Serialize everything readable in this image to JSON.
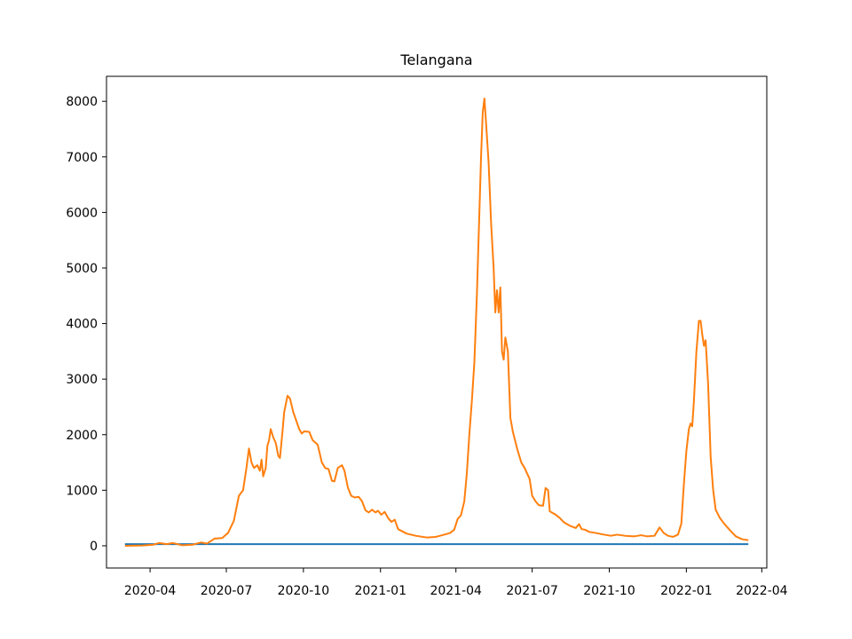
{
  "chart_data": {
    "type": "line",
    "title": "Telangana",
    "xlabel": "",
    "ylabel": "",
    "xlim": [
      "2020-02-09",
      "2022-04-07"
    ],
    "ylim": [
      -400,
      8450
    ],
    "x_ticks": [
      {
        "date": "2020-04-01",
        "label": "2020-04"
      },
      {
        "date": "2020-07-01",
        "label": "2020-07"
      },
      {
        "date": "2020-10-01",
        "label": "2020-10"
      },
      {
        "date": "2021-01-01",
        "label": "2021-01"
      },
      {
        "date": "2021-04-01",
        "label": "2021-04"
      },
      {
        "date": "2021-07-01",
        "label": "2021-07"
      },
      {
        "date": "2021-10-01",
        "label": "2021-10"
      },
      {
        "date": "2022-01-01",
        "label": "2022-01"
      },
      {
        "date": "2022-04-01",
        "label": "2022-04"
      }
    ],
    "y_ticks": [
      0,
      1000,
      2000,
      3000,
      4000,
      5000,
      6000,
      7000,
      8000
    ],
    "grid": false,
    "legend": false,
    "series": [
      {
        "color": "#1f77b4",
        "points": [
          [
            "2020-03-02",
            30
          ],
          [
            "2022-03-16",
            30
          ]
        ]
      },
      {
        "color": "#ff7f0e",
        "points": [
          [
            "2020-03-02",
            0
          ],
          [
            "2020-03-23",
            5
          ],
          [
            "2020-04-05",
            20
          ],
          [
            "2020-04-12",
            50
          ],
          [
            "2020-04-21",
            30
          ],
          [
            "2020-04-28",
            50
          ],
          [
            "2020-05-09",
            10
          ],
          [
            "2020-05-22",
            20
          ],
          [
            "2020-06-01",
            60
          ],
          [
            "2020-06-08",
            40
          ],
          [
            "2020-06-17",
            130
          ],
          [
            "2020-06-26",
            140
          ],
          [
            "2020-07-03",
            230
          ],
          [
            "2020-07-10",
            450
          ],
          [
            "2020-07-16",
            900
          ],
          [
            "2020-07-21",
            1000
          ],
          [
            "2020-07-25",
            1400
          ],
          [
            "2020-07-28",
            1750
          ],
          [
            "2020-07-31",
            1500
          ],
          [
            "2020-08-03",
            1400
          ],
          [
            "2020-08-07",
            1450
          ],
          [
            "2020-08-10",
            1350
          ],
          [
            "2020-08-12",
            1550
          ],
          [
            "2020-08-14",
            1250
          ],
          [
            "2020-08-17",
            1400
          ],
          [
            "2020-08-19",
            1800
          ],
          [
            "2020-08-21",
            1900
          ],
          [
            "2020-08-23",
            2100
          ],
          [
            "2020-08-26",
            1950
          ],
          [
            "2020-08-29",
            1850
          ],
          [
            "2020-09-01",
            1620
          ],
          [
            "2020-09-03",
            1580
          ],
          [
            "2020-09-06",
            2050
          ],
          [
            "2020-09-08",
            2400
          ],
          [
            "2020-09-12",
            2700
          ],
          [
            "2020-09-15",
            2650
          ],
          [
            "2020-09-19",
            2400
          ],
          [
            "2020-09-26",
            2100
          ],
          [
            "2020-09-29",
            2020
          ],
          [
            "2020-10-02",
            2060
          ],
          [
            "2020-10-08",
            2050
          ],
          [
            "2020-10-12",
            1900
          ],
          [
            "2020-10-18",
            1820
          ],
          [
            "2020-10-23",
            1500
          ],
          [
            "2020-10-27",
            1400
          ],
          [
            "2020-10-31",
            1380
          ],
          [
            "2020-11-04",
            1170
          ],
          [
            "2020-11-07",
            1160
          ],
          [
            "2020-11-11",
            1400
          ],
          [
            "2020-11-16",
            1450
          ],
          [
            "2020-11-19",
            1350
          ],
          [
            "2020-11-23",
            1050
          ],
          [
            "2020-11-27",
            900
          ],
          [
            "2020-12-01",
            870
          ],
          [
            "2020-12-06",
            880
          ],
          [
            "2020-12-10",
            800
          ],
          [
            "2020-12-14",
            640
          ],
          [
            "2020-12-18",
            600
          ],
          [
            "2020-12-22",
            650
          ],
          [
            "2020-12-26",
            600
          ],
          [
            "2020-12-29",
            630
          ],
          [
            "2021-01-02",
            560
          ],
          [
            "2021-01-06",
            610
          ],
          [
            "2021-01-10",
            500
          ],
          [
            "2021-01-14",
            430
          ],
          [
            "2021-01-18",
            470
          ],
          [
            "2021-01-22",
            300
          ],
          [
            "2021-02-01",
            220
          ],
          [
            "2021-02-12",
            180
          ],
          [
            "2021-02-25",
            150
          ],
          [
            "2021-03-08",
            160
          ],
          [
            "2021-03-18",
            200
          ],
          [
            "2021-03-25",
            230
          ],
          [
            "2021-03-30",
            290
          ],
          [
            "2021-04-03",
            480
          ],
          [
            "2021-04-07",
            550
          ],
          [
            "2021-04-11",
            800
          ],
          [
            "2021-04-14",
            1300
          ],
          [
            "2021-04-17",
            2000
          ],
          [
            "2021-04-20",
            2600
          ],
          [
            "2021-04-23",
            3300
          ],
          [
            "2021-04-26",
            4500
          ],
          [
            "2021-04-28",
            5500
          ],
          [
            "2021-05-01",
            7000
          ],
          [
            "2021-05-03",
            7800
          ],
          [
            "2021-05-05",
            8050
          ],
          [
            "2021-05-07",
            7600
          ],
          [
            "2021-05-10",
            6900
          ],
          [
            "2021-05-13",
            5800
          ],
          [
            "2021-05-16",
            5000
          ],
          [
            "2021-05-18",
            4200
          ],
          [
            "2021-05-20",
            4600
          ],
          [
            "2021-05-22",
            4200
          ],
          [
            "2021-05-24",
            4650
          ],
          [
            "2021-05-26",
            3500
          ],
          [
            "2021-05-28",
            3350
          ],
          [
            "2021-05-30",
            3750
          ],
          [
            "2021-06-02",
            3500
          ],
          [
            "2021-06-05",
            2300
          ],
          [
            "2021-06-08",
            2050
          ],
          [
            "2021-06-13",
            1750
          ],
          [
            "2021-06-18",
            1500
          ],
          [
            "2021-06-22",
            1400
          ],
          [
            "2021-06-25",
            1300
          ],
          [
            "2021-06-28",
            1200
          ],
          [
            "2021-07-01",
            900
          ],
          [
            "2021-07-05",
            800
          ],
          [
            "2021-07-09",
            730
          ],
          [
            "2021-07-14",
            720
          ],
          [
            "2021-07-17",
            1040
          ],
          [
            "2021-07-20",
            1000
          ],
          [
            "2021-07-22",
            620
          ],
          [
            "2021-07-29",
            560
          ],
          [
            "2021-08-03",
            500
          ],
          [
            "2021-08-08",
            420
          ],
          [
            "2021-08-15",
            360
          ],
          [
            "2021-08-22",
            320
          ],
          [
            "2021-08-26",
            390
          ],
          [
            "2021-08-29",
            300
          ],
          [
            "2021-09-02",
            290
          ],
          [
            "2021-09-07",
            250
          ],
          [
            "2021-09-15",
            230
          ],
          [
            "2021-09-25",
            200
          ],
          [
            "2021-10-03",
            180
          ],
          [
            "2021-10-10",
            200
          ],
          [
            "2021-10-20",
            180
          ],
          [
            "2021-10-31",
            170
          ],
          [
            "2021-11-08",
            190
          ],
          [
            "2021-11-15",
            170
          ],
          [
            "2021-11-24",
            180
          ],
          [
            "2021-11-30",
            330
          ],
          [
            "2021-12-05",
            230
          ],
          [
            "2021-12-10",
            180
          ],
          [
            "2021-12-16",
            160
          ],
          [
            "2021-12-22",
            200
          ],
          [
            "2021-12-26",
            400
          ],
          [
            "2021-12-29",
            1100
          ],
          [
            "2022-01-01",
            1700
          ],
          [
            "2022-01-04",
            2100
          ],
          [
            "2022-01-06",
            2200
          ],
          [
            "2022-01-08",
            2150
          ],
          [
            "2022-01-10",
            2600
          ],
          [
            "2022-01-13",
            3500
          ],
          [
            "2022-01-16",
            4050
          ],
          [
            "2022-01-18",
            4050
          ],
          [
            "2022-01-20",
            3800
          ],
          [
            "2022-01-22",
            3600
          ],
          [
            "2022-01-24",
            3700
          ],
          [
            "2022-01-27",
            2900
          ],
          [
            "2022-01-30",
            1600
          ],
          [
            "2022-02-02",
            1000
          ],
          [
            "2022-02-05",
            650
          ],
          [
            "2022-02-10",
            500
          ],
          [
            "2022-02-15",
            400
          ],
          [
            "2022-02-22",
            280
          ],
          [
            "2022-03-01",
            170
          ],
          [
            "2022-03-08",
            120
          ],
          [
            "2022-03-16",
            100
          ]
        ]
      }
    ]
  }
}
